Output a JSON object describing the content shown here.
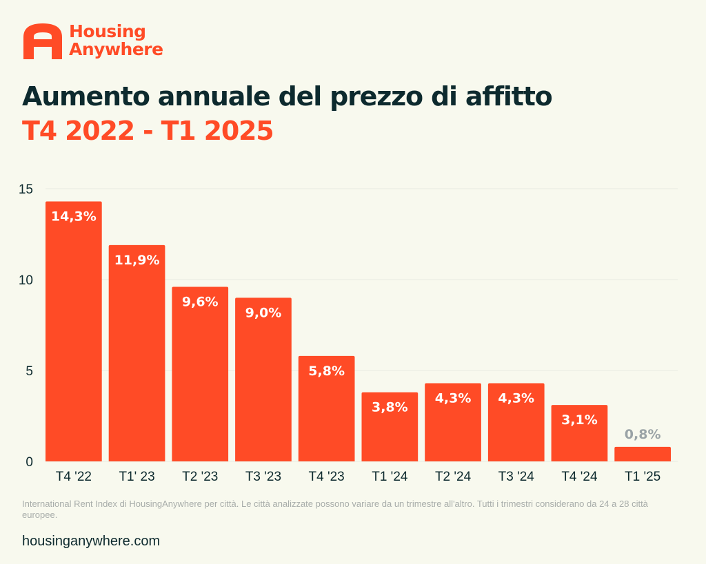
{
  "brand": {
    "line1": "Housing",
    "line2": "Anywhere",
    "logo_icon": "housinganywhere-h-icon",
    "color": "#ff4b26"
  },
  "title": "Aumento annuale del prezzo di affitto",
  "subtitle": "T4 2022 - T1 2025",
  "colors": {
    "bar": "#ff4b26",
    "title": "#0d2a2e",
    "subtitle": "#ff4b26",
    "label_inside": "#ffffff",
    "label_outside": "#9aa3a6",
    "axis_text": "#0d2a2e",
    "grid": "#e9ebe2"
  },
  "chart_data": {
    "type": "bar",
    "categories": [
      "T4 '22",
      "T1' 23",
      "T2 '23",
      "T3 '23",
      "T4 '23",
      "T1 '24",
      "T2 '24",
      "T3 '24",
      "T4 '24",
      "T1 '25"
    ],
    "values": [
      14.3,
      11.9,
      9.6,
      9.0,
      5.8,
      3.8,
      4.3,
      4.3,
      3.1,
      0.8
    ],
    "data_labels": [
      "14,3%",
      "11,9%",
      "9,6%",
      "9,0%",
      "5,8%",
      "3,8%",
      "4,3%",
      "4,3%",
      "3,1%",
      "0,8%"
    ],
    "yticks": [
      "0",
      "5",
      "10",
      "15"
    ],
    "ylim": [
      0,
      15
    ],
    "grid": true,
    "legend": "none"
  },
  "footnote": "International Rent Index di HousingAnywhere per città. Le città analizzate possono variare da un trimestre all'altro. Tutti i trimestri considerano da 24 a 28 città europee.",
  "website": "housinganywhere.com"
}
